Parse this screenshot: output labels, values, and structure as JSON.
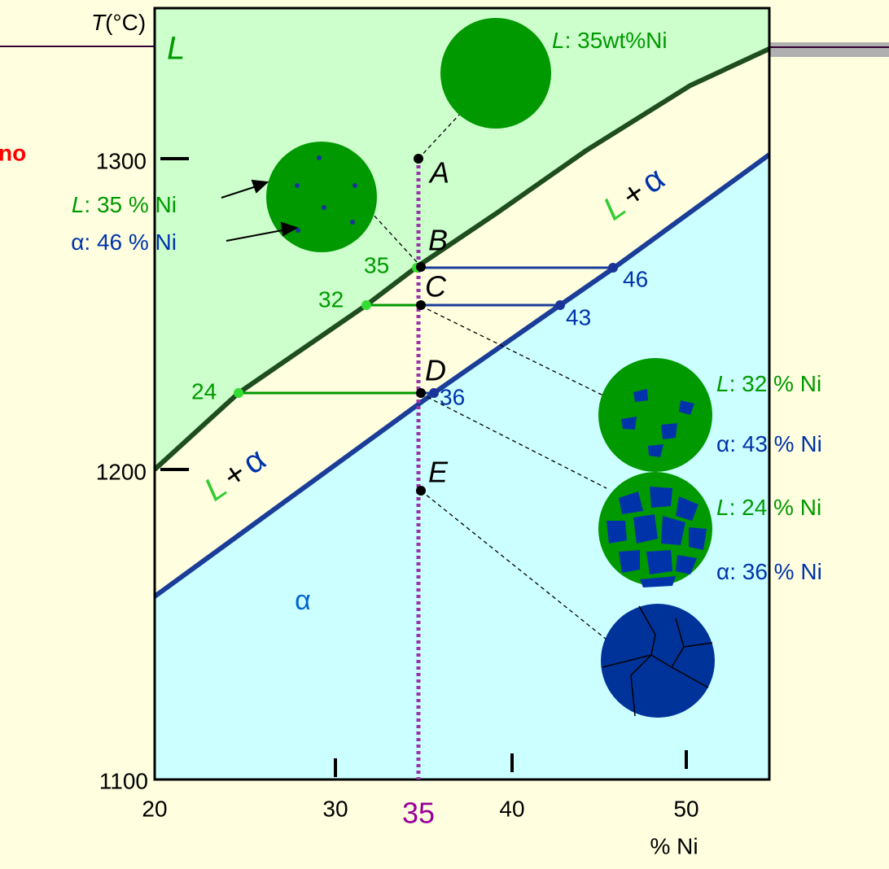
{
  "axis": {
    "y_symbol": "T",
    "y_unit": "(°C)",
    "y_ticks": [
      "1300",
      "1200",
      "1100"
    ],
    "x_ticks": [
      "20",
      "30",
      "40",
      "50"
    ],
    "x_composition": "35",
    "x_label": "% Ni"
  },
  "regions": {
    "liquid": "L",
    "upper_two_phase": [
      "L",
      "+",
      "α"
    ],
    "lower_two_phase": [
      "L",
      "+",
      "α"
    ],
    "solid": "α"
  },
  "points": [
    "A",
    "B",
    "C",
    "D",
    "E"
  ],
  "tie_lines": {
    "B": [
      "35",
      "46"
    ],
    "C": [
      "32",
      "43"
    ],
    "D": [
      "24",
      "36"
    ]
  },
  "side_note": {
    "cut_text": "no",
    "liquid": [
      "L",
      ": 35 % Ni"
    ],
    "solid": [
      "α",
      ": 46 % Ni"
    ]
  },
  "micro": {
    "A": [
      "L",
      ": 35wt%Ni"
    ],
    "C": {
      "liquid": [
        "L",
        ": 32 % Ni"
      ],
      "solid": [
        "α",
        ": 43 % Ni"
      ]
    },
    "D": {
      "liquid": [
        "L",
        ": 24 % Ni"
      ],
      "solid": [
        "α",
        ": 36 % Ni"
      ]
    }
  }
}
